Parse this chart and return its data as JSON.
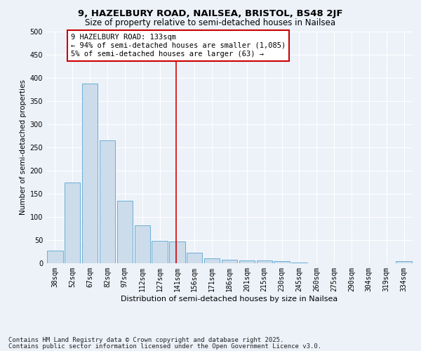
{
  "title1": "9, HAZELBURY ROAD, NAILSEA, BRISTOL, BS48 2JF",
  "title2": "Size of property relative to semi-detached houses in Nailsea",
  "xlabel": "Distribution of semi-detached houses by size in Nailsea",
  "ylabel": "Number of semi-detached properties",
  "categories": [
    "38sqm",
    "52sqm",
    "67sqm",
    "82sqm",
    "97sqm",
    "112sqm",
    "127sqm",
    "141sqm",
    "156sqm",
    "171sqm",
    "186sqm",
    "201sqm",
    "215sqm",
    "230sqm",
    "245sqm",
    "260sqm",
    "275sqm",
    "290sqm",
    "304sqm",
    "319sqm",
    "334sqm"
  ],
  "values": [
    28,
    175,
    388,
    265,
    135,
    82,
    48,
    47,
    22,
    11,
    7,
    6,
    6,
    4,
    1,
    0,
    0,
    0,
    0,
    0,
    4
  ],
  "bar_color": "#ccdcea",
  "bar_edge_color": "#6aaed6",
  "vline_color": "#cc0000",
  "annotation_text": "9 HAZELBURY ROAD: 133sqm\n← 94% of semi-detached houses are smaller (1,085)\n5% of semi-detached houses are larger (63) →",
  "annotation_box_facecolor": "#ffffff",
  "annotation_box_edgecolor": "#cc0000",
  "footnote1": "Contains HM Land Registry data © Crown copyright and database right 2025.",
  "footnote2": "Contains public sector information licensed under the Open Government Licence v3.0.",
  "background_color": "#edf2f9",
  "grid_color": "#ffffff",
  "ylim": [
    0,
    500
  ],
  "yticks": [
    0,
    50,
    100,
    150,
    200,
    250,
    300,
    350,
    400,
    450,
    500
  ],
  "title1_fontsize": 9.5,
  "title2_fontsize": 8.5,
  "xlabel_fontsize": 8,
  "ylabel_fontsize": 7.5,
  "tick_fontsize": 7,
  "annotation_fontsize": 7.5,
  "footnote_fontsize": 6.5
}
